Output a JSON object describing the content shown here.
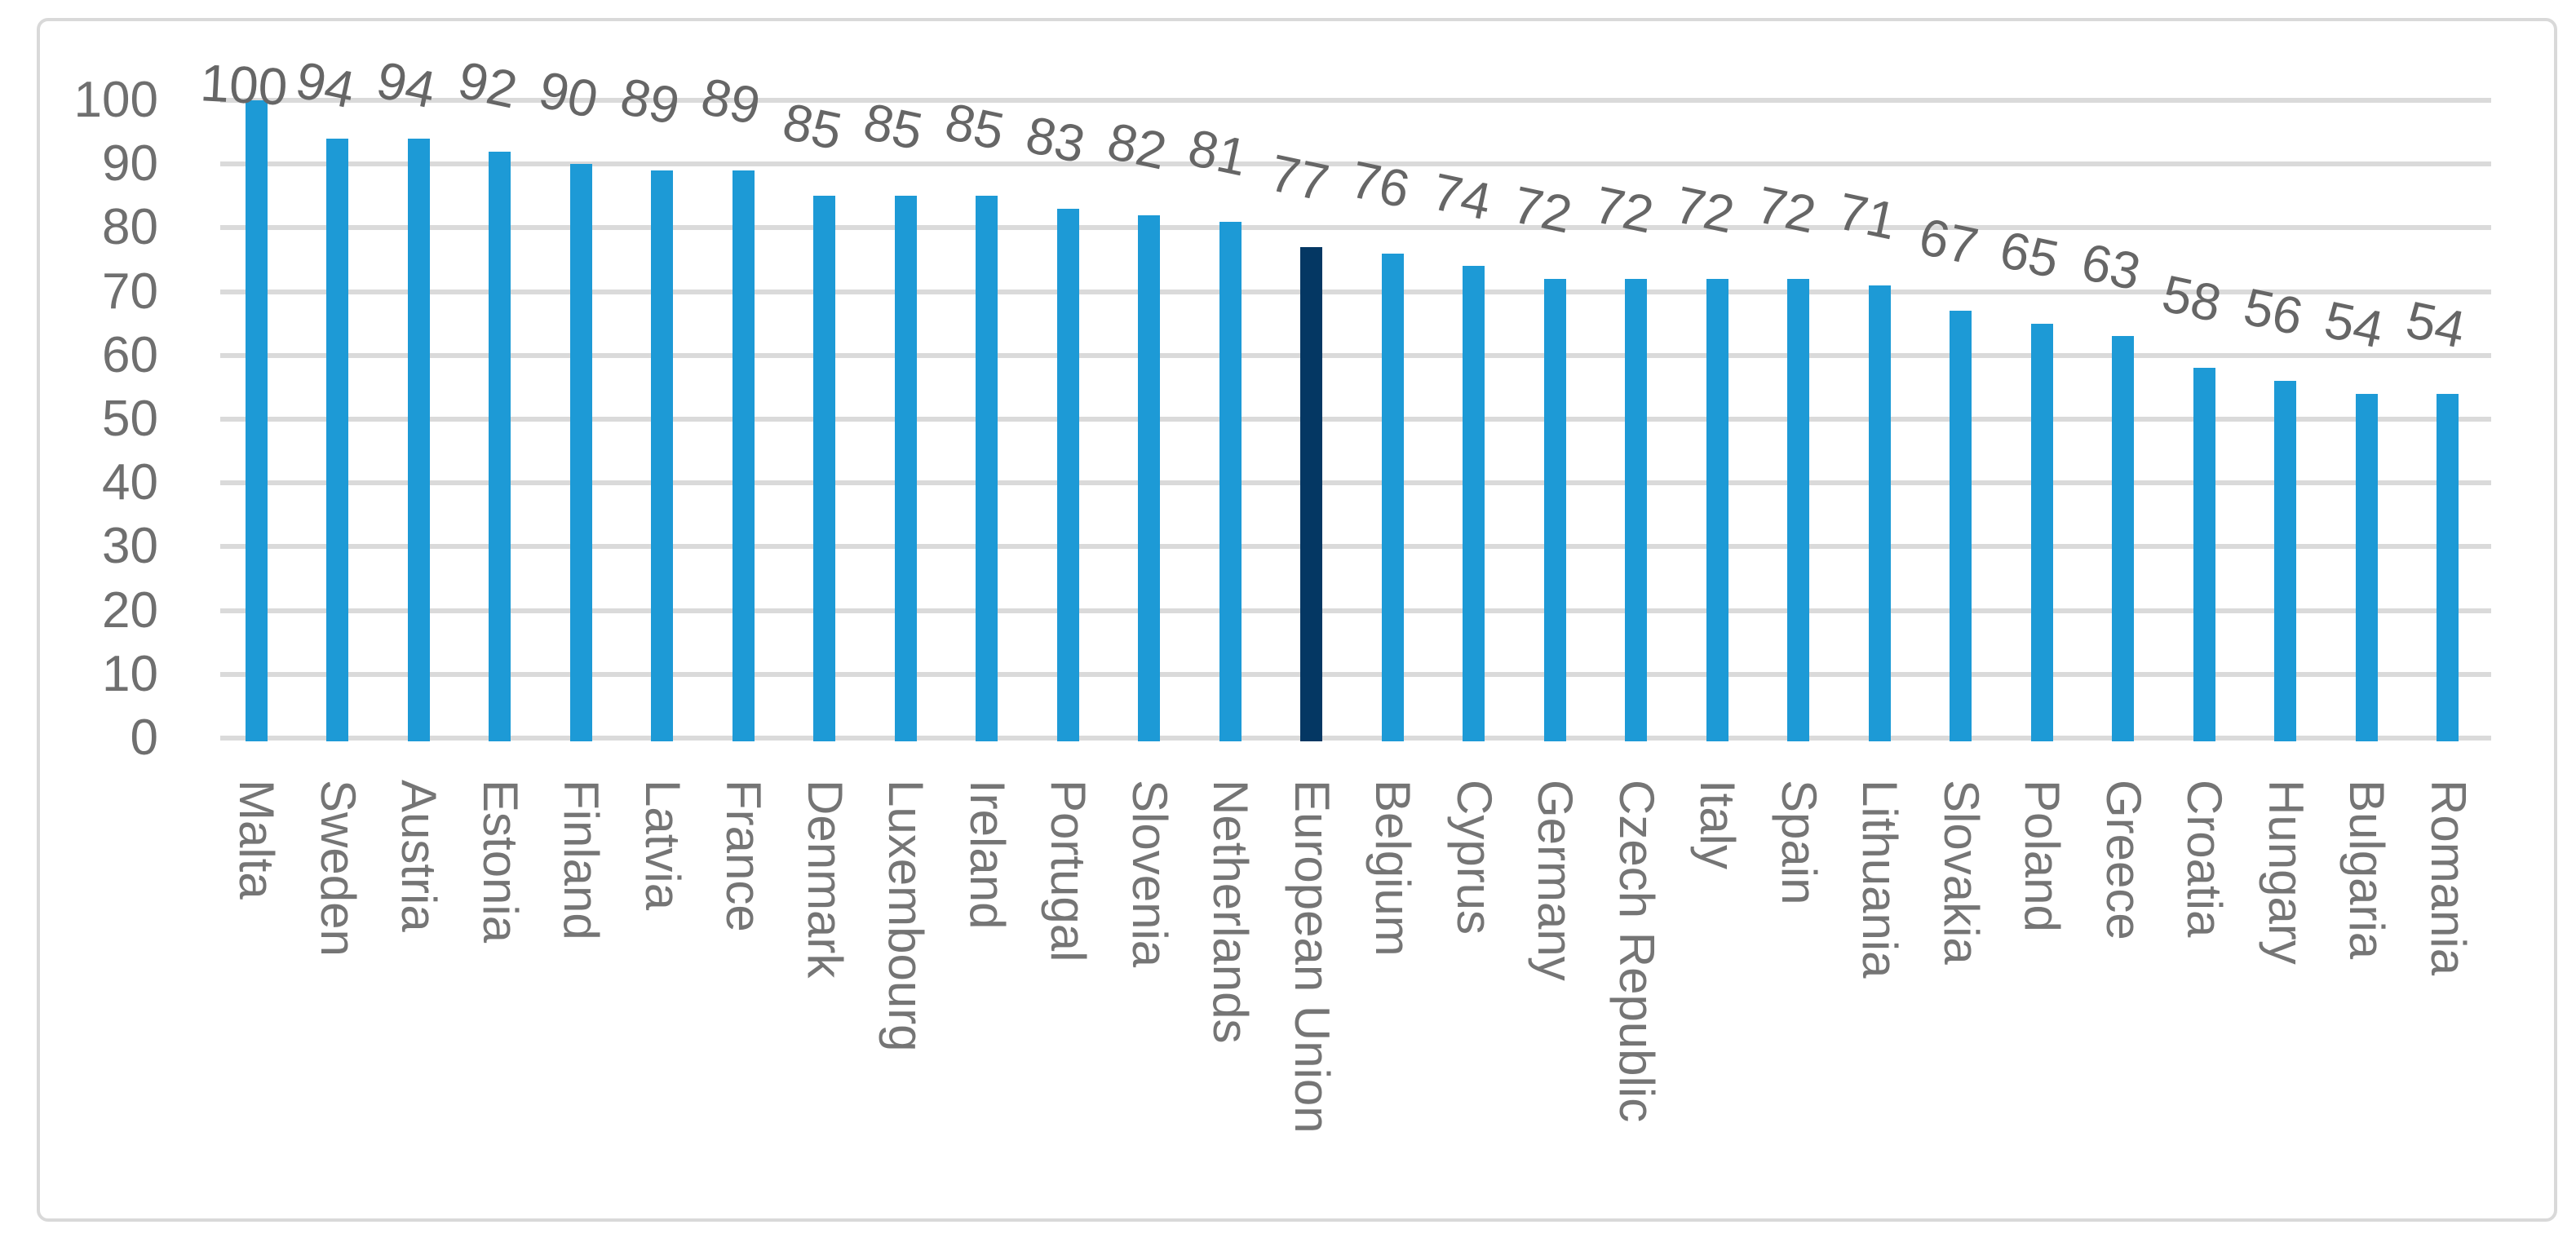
{
  "chart_data": {
    "type": "bar",
    "title": "",
    "xlabel": "",
    "ylabel": "",
    "categories": [
      "Malta",
      "Sweden",
      "Austria",
      "Estonia",
      "Finland",
      "Latvia",
      "France",
      "Denmark",
      "Luxembourg",
      "Ireland",
      "Portugal",
      "Slovenia",
      "Netherlands",
      "European Union",
      "Belgium",
      "Cyprus",
      "Germany",
      "Czech Republic",
      "Italy",
      "Spain",
      "Lithuania",
      "Slovakia",
      "Poland",
      "Greece",
      "Croatia",
      "Hungary",
      "Bulgaria",
      "Romania"
    ],
    "values": [
      100,
      94,
      94,
      92,
      90,
      89,
      89,
      85,
      85,
      85,
      83,
      82,
      81,
      77,
      76,
      74,
      72,
      72,
      72,
      72,
      71,
      67,
      65,
      63,
      58,
      56,
      54,
      54
    ],
    "data_labels_shown": true,
    "highlight_category": "European Union",
    "ylim": [
      0,
      100
    ],
    "ytick_step": 10,
    "yticks": [
      0,
      10,
      20,
      30,
      40,
      50,
      60,
      70,
      80,
      90,
      100
    ],
    "grid": true,
    "legend_position": "none",
    "colors": {
      "bar": "#1d9ad6",
      "highlight_bar": "#043763",
      "gridline": "#dadada",
      "value_label_text": "#666666",
      "axis_text": "#6f6f6f",
      "category_text": "#757575",
      "frame_border": "#d9d9d9",
      "background": "#ffffff"
    }
  }
}
